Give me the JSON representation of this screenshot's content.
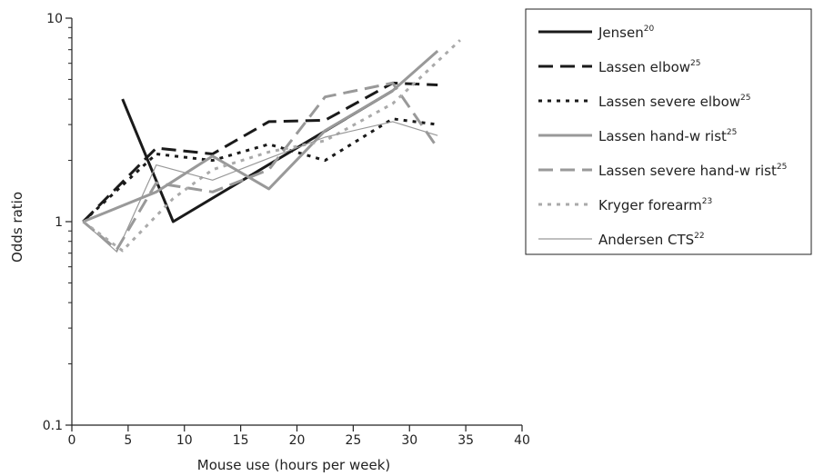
{
  "chart_data": {
    "type": "line",
    "xlabel": "Mouse use (hours per week)",
    "ylabel": "Odds ratio",
    "xlim": [
      0,
      40
    ],
    "ylim": [
      0.1,
      10
    ],
    "y_scale": "log",
    "x_ticks": [
      0,
      5,
      10,
      15,
      20,
      25,
      30,
      35,
      40
    ],
    "x_tick_labels": [
      "0",
      "5",
      "10",
      "15",
      "20",
      "25",
      "30",
      "35",
      "40"
    ],
    "y_ticks": [
      0.1,
      1,
      10
    ],
    "y_tick_labels": [
      "0.1",
      "1",
      "10"
    ],
    "grid": false,
    "legend_position": "top-right",
    "series": [
      {
        "name": "Jensen",
        "ref": "20",
        "color": "#1a1a1a",
        "dash": "solid",
        "width": 3,
        "x": [
          4.5,
          9,
          28.5
        ],
        "y": [
          4.0,
          1.0,
          4.4
        ]
      },
      {
        "name": "Lassen elbow",
        "ref": "25",
        "color": "#1a1a1a",
        "dash": "long-dash",
        "width": 3,
        "x": [
          1,
          7.5,
          12.5,
          17.5,
          22.5,
          28.5,
          32.5
        ],
        "y": [
          1.0,
          2.3,
          2.15,
          3.1,
          3.15,
          4.8,
          4.7
        ]
      },
      {
        "name": "Lassen severe elbow",
        "ref": "25",
        "color": "#1a1a1a",
        "dash": "dot",
        "width": 3,
        "x": [
          1,
          7.5,
          12.5,
          17.5,
          22.5,
          28.5,
          32.5
        ],
        "y": [
          1.0,
          2.15,
          2.0,
          2.4,
          2.0,
          3.2,
          3.0
        ]
      },
      {
        "name": "Lassen hand-w rist",
        "ref": "25",
        "color": "#999999",
        "dash": "solid",
        "width": 3,
        "x": [
          1,
          7.5,
          12.5,
          17.5,
          22.5,
          28.5,
          32.5
        ],
        "y": [
          1.0,
          1.4,
          2.1,
          1.45,
          2.8,
          4.4,
          6.9
        ]
      },
      {
        "name": "Lassen severe hand-w rist",
        "ref": "25",
        "color": "#999999",
        "dash": "long-dash",
        "width": 3,
        "x": [
          1,
          4,
          7.5,
          12.5,
          17.5,
          22.5,
          28.5,
          32.5
        ],
        "y": [
          1.0,
          0.73,
          1.55,
          1.4,
          1.8,
          4.1,
          4.8,
          2.3
        ]
      },
      {
        "name": "Kryger forearm",
        "ref": "23",
        "color": "#aaaaaa",
        "dash": "dot",
        "width": 3,
        "x": [
          1,
          4.5,
          9,
          12.5,
          17.5,
          22.5,
          28.5,
          34.5
        ],
        "y": [
          1.0,
          0.72,
          1.3,
          1.8,
          2.2,
          2.5,
          3.8,
          7.8
        ]
      },
      {
        "name": "Andersen CTS",
        "ref": "22",
        "color": "#999999",
        "dash": "solid",
        "width": 1.2,
        "x": [
          1,
          4,
          7.5,
          12.5,
          17.5,
          22.5,
          28.5,
          32.5
        ],
        "y": [
          1.0,
          0.71,
          1.9,
          1.6,
          2.05,
          2.6,
          3.1,
          2.65
        ]
      }
    ]
  }
}
